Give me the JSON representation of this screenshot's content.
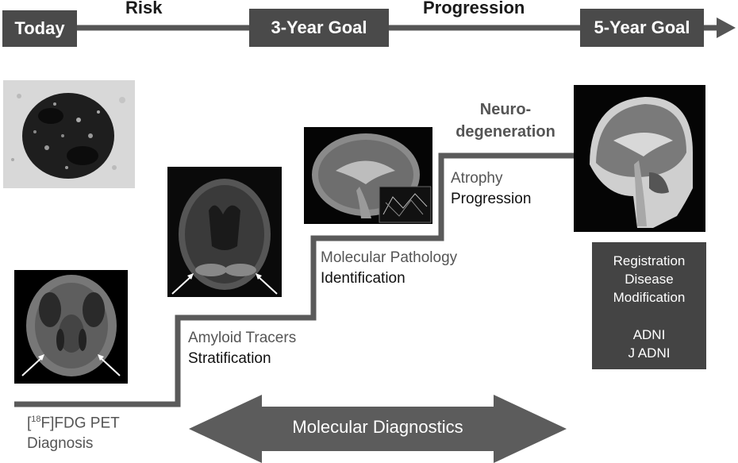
{
  "timeline": {
    "today": "Today",
    "risk": "Risk",
    "goal3": "3-Year Goal",
    "progression": "Progression",
    "goal5": "5-Year Goal"
  },
  "stages": {
    "fdg": {
      "line1_prefix": "[",
      "line1_sup": "18",
      "line1_suffix": "F]FDG PET",
      "line2": "Diagnosis"
    },
    "amyloid": {
      "line1": "Amyloid Tracers",
      "line2": "Stratification"
    },
    "molecular": {
      "line1": "Molecular Pathology",
      "line2": "Identification"
    },
    "atrophy": {
      "line1": "Atrophy",
      "line2": "Progression"
    },
    "neuro": {
      "line1": "Neuro-",
      "line2": "degeneration"
    }
  },
  "info_box": {
    "line1": "Registration",
    "line2": "Disease",
    "line3": "Modification",
    "line4": "ADNI",
    "line5": "J ADNI"
  },
  "bottom_arrow": {
    "label": "Molecular Diagnostics"
  },
  "colors": {
    "dark_box": "#4a4a4a",
    "step_line": "#5a5a5a",
    "arrow": "#5c5c5c"
  }
}
